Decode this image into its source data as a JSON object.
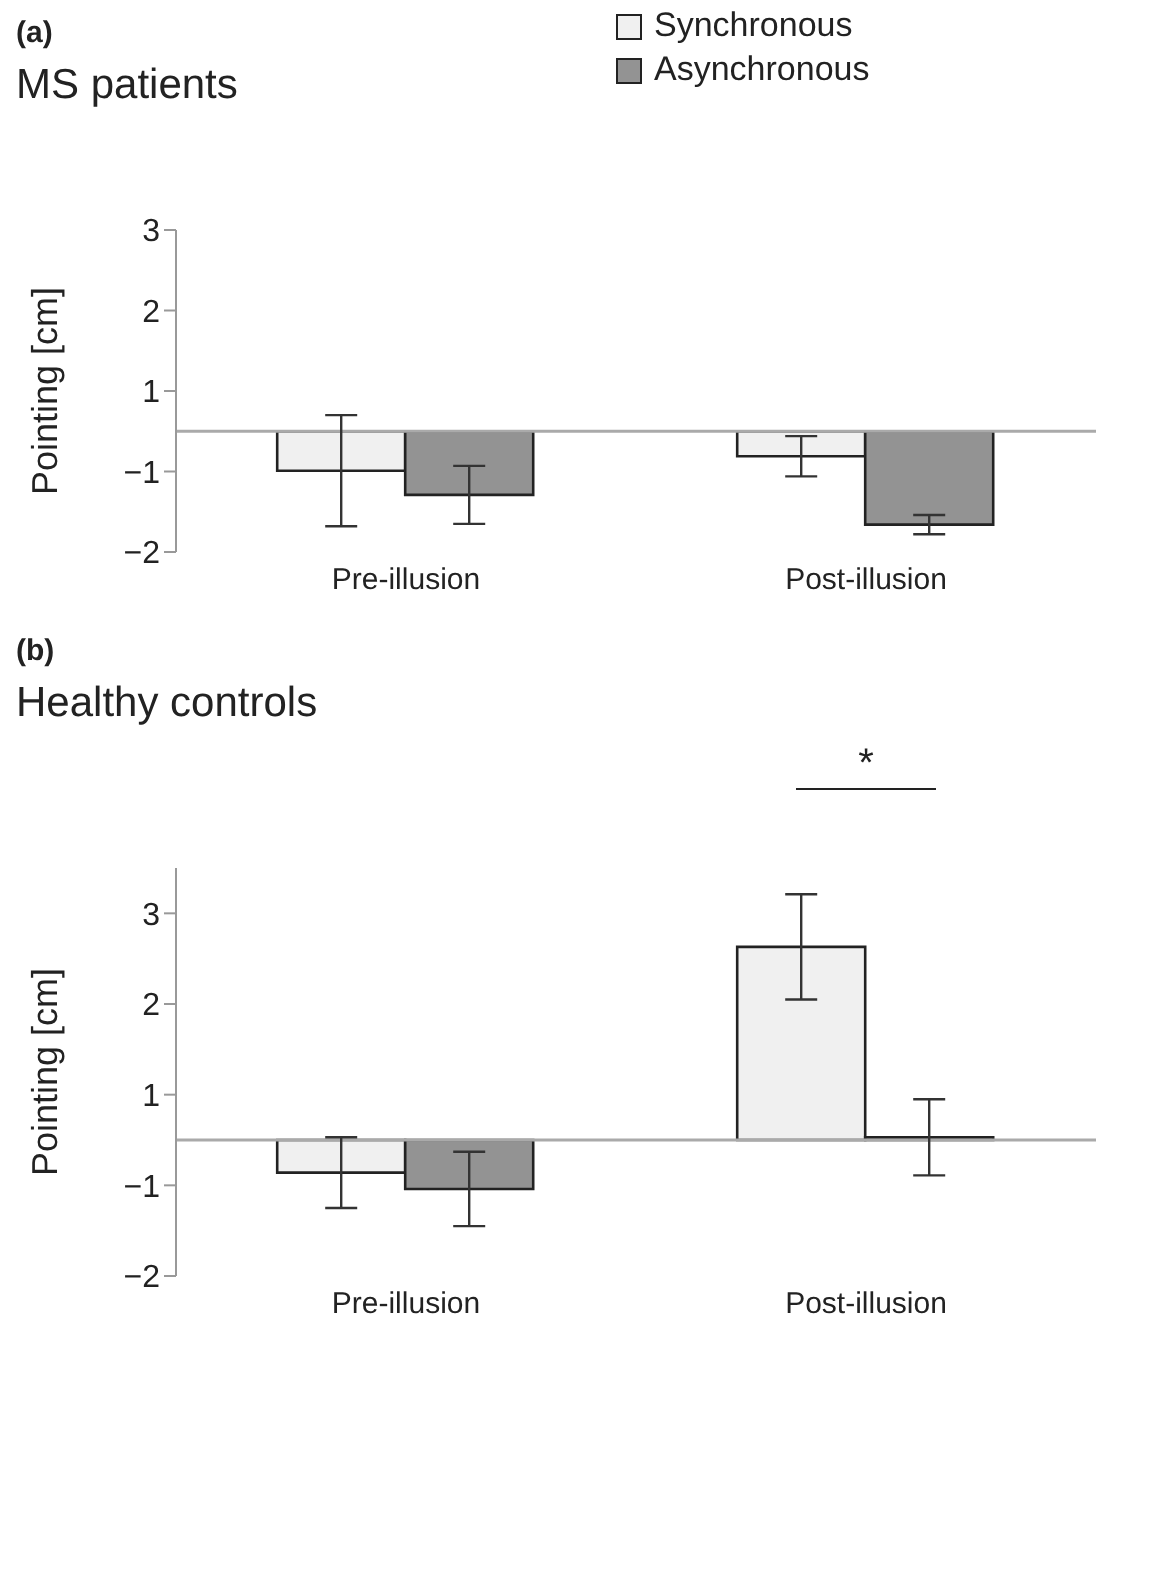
{
  "chart_data": [
    {
      "type": "bar",
      "title": "(a)",
      "subtitle": "MS patients",
      "ylabel": "Pointing [cm]",
      "categories": [
        "Pre-illusion",
        "Post-illusion"
      ],
      "series": [
        {
          "name": "Synchronous",
          "color": "#f0f0f0",
          "values": [
            -0.49,
            -0.31
          ],
          "errors": [
            0.69,
            0.25
          ]
        },
        {
          "name": "Asynchronous",
          "color": "#939393",
          "values": [
            -0.79,
            -1.16
          ],
          "errors": [
            0.36,
            0.12
          ]
        }
      ],
      "ylim": [
        -1.5,
        2.5
      ],
      "yticks": [
        {
          "value": 2.5,
          "label": "3"
        },
        {
          "value": 1.5,
          "label": "2"
        },
        {
          "value": 0.5,
          "label": "1"
        },
        {
          "value": -0.5,
          "label": "−1"
        },
        {
          "value": -1.5,
          "label": "−2"
        }
      ],
      "grid": false,
      "legend": "top"
    },
    {
      "type": "bar",
      "title": "(b)",
      "subtitle": "Healthy controls",
      "ylabel": "Pointing [cm]",
      "categories": [
        "Pre-illusion",
        "Post-illusion"
      ],
      "series": [
        {
          "color": "#f0f0f0",
          "values": [
            -0.36,
            2.13
          ],
          "errors": [
            0.39,
            0.58
          ]
        },
        {
          "color": "#939393",
          "values": [
            -0.54,
            0.03
          ],
          "errors": [
            0.41,
            0.42
          ]
        }
      ],
      "ylim": [
        -1.5,
        3
      ],
      "yticks": [
        {
          "value": 2.5,
          "label": "3"
        },
        {
          "value": 1.5,
          "label": "2"
        },
        {
          "value": 0.5,
          "label": "1"
        },
        {
          "value": -0.5,
          "label": "−1"
        },
        {
          "value": -1.5,
          "label": "−2"
        }
      ],
      "grid": false,
      "legend": false,
      "annotations": [
        "*"
      ]
    }
  ]
}
